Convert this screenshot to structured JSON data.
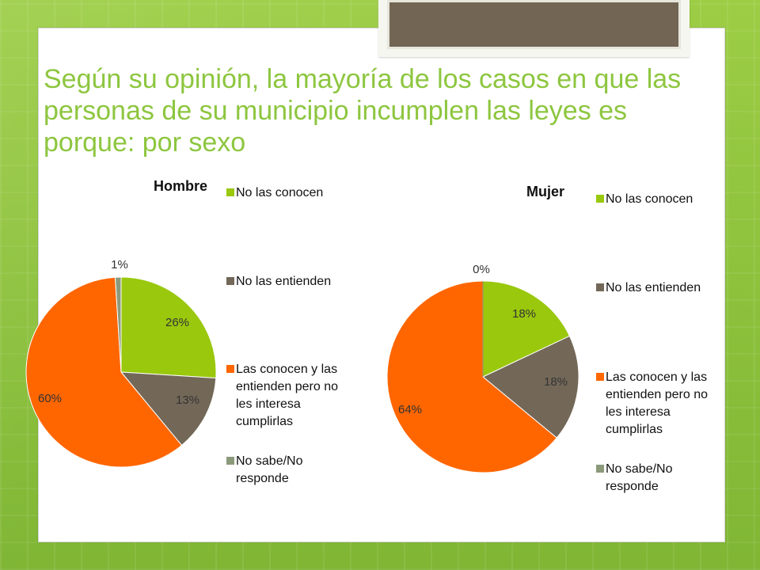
{
  "slide": {
    "title": "Según su opinión, la mayoría de los casos en que las personas de su municipio incumplen las leyes es porque: por sexo"
  },
  "theme": {
    "title_color": "#8dc63f",
    "background_green": "#8fc43a",
    "top_box_color": "#726553"
  },
  "chart_data": [
    {
      "type": "pie",
      "title": "Hombre",
      "categories": [
        "No las conocen",
        "No las entienden",
        "Las conocen y las entienden pero no les interesa cumplirlas",
        "No sabe/No responde"
      ],
      "values": [
        26,
        13,
        60,
        1
      ],
      "labels": [
        "26%",
        "13%",
        "60%",
        "1%"
      ],
      "colors": [
        "#99c80d",
        "#736858",
        "#ff6600",
        "#8c9a7c"
      ],
      "legend": {
        "placement": "right",
        "entries": [
          "No las conocen",
          "No las entienden",
          "Las conocen y las entienden pero no les interesa cumplirlas",
          "No sabe/No responde"
        ],
        "lines": [
          [
            "No las conocen"
          ],
          [
            "No las entienden"
          ],
          [
            "Las conocen y las",
            "entienden pero no",
            "les interesa",
            "cumplirlas"
          ],
          [
            "No sabe/No",
            "responde"
          ]
        ]
      }
    },
    {
      "type": "pie",
      "title": "Mujer",
      "categories": [
        "No las conocen",
        "No las entienden",
        "Las conocen y las entienden pero no les interesa cumplirlas",
        "No sabe/No responde"
      ],
      "values": [
        18,
        18,
        64,
        0
      ],
      "labels": [
        "18%",
        "18%",
        "64%",
        "0%"
      ],
      "colors": [
        "#99c80d",
        "#736858",
        "#ff6600",
        "#8c9a7c"
      ],
      "legend": {
        "placement": "right",
        "entries": [
          "No las conocen",
          "No las entienden",
          "Las conocen y las entienden pero no les interesa cumplirlas",
          "No sabe/No responde"
        ],
        "lines": [
          [
            "No las conocen"
          ],
          [
            "No las entienden"
          ],
          [
            "Las conocen y las",
            "entienden pero no",
            "les interesa",
            "cumplirlas"
          ],
          [
            "No sabe/No",
            "responde"
          ]
        ]
      }
    }
  ]
}
